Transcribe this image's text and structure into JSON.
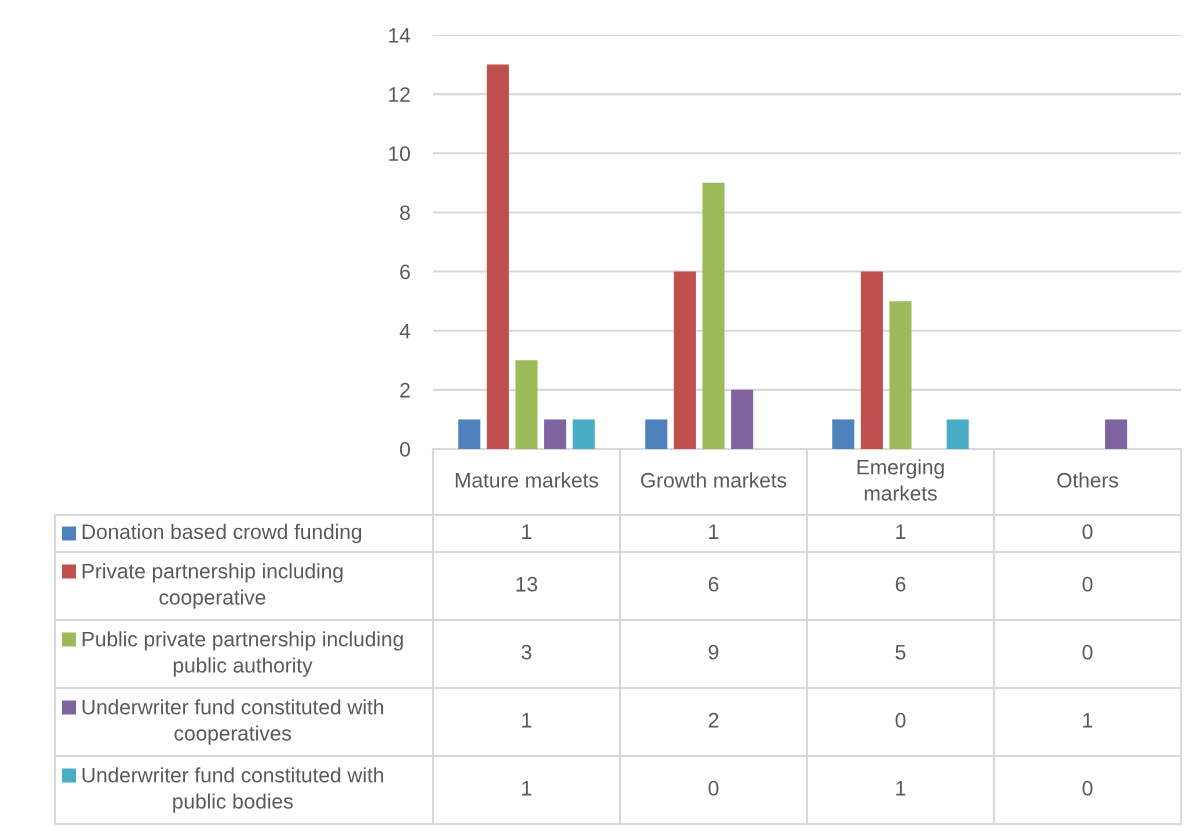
{
  "chart_data": {
    "type": "bar",
    "categories": [
      "Mature markets",
      "Growth markets",
      "Emerging markets",
      "Others"
    ],
    "series": [
      {
        "name": "Donation based crowd funding",
        "color": "#4f81bd",
        "values": [
          1,
          1,
          1,
          0
        ]
      },
      {
        "name": "Private partnership including cooperative",
        "color": "#c0504d",
        "values": [
          13,
          6,
          6,
          0
        ]
      },
      {
        "name": "Public private partnership including public authority",
        "color": "#9bbb59",
        "values": [
          3,
          9,
          5,
          0
        ]
      },
      {
        "name": "Underwriter fund constituted with cooperatives",
        "color": "#8064a2",
        "values": [
          1,
          2,
          0,
          1
        ]
      },
      {
        "name": "Underwriter fund constituted with public bodies",
        "color": "#4bacc6",
        "values": [
          1,
          0,
          1,
          0
        ]
      }
    ],
    "ylim": [
      0,
      14
    ],
    "yticks": [
      0,
      2,
      4,
      6,
      8,
      10,
      12,
      14
    ],
    "grid": "y",
    "legend": "bottom left",
    "data_labels": true
  }
}
